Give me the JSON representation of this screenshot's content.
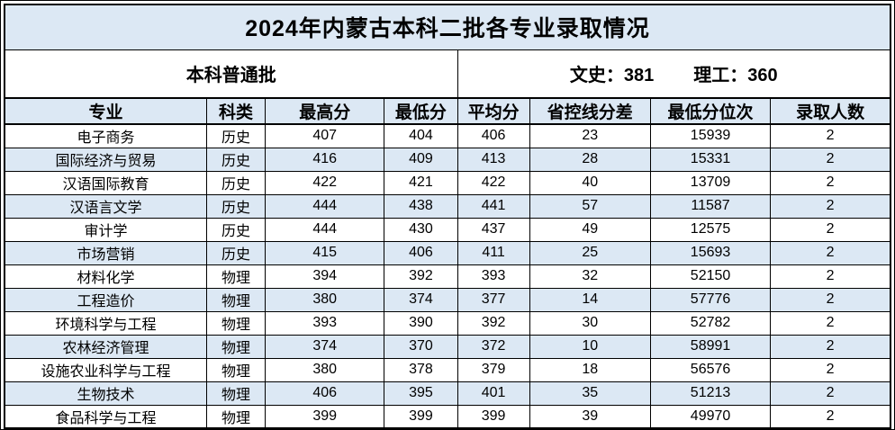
{
  "title": "2024年内蒙古本科二批各专业录取情况",
  "subheader": {
    "batch": "本科普通批",
    "wenshi": "文史：381",
    "ligong": "理工：360"
  },
  "table": {
    "columns": [
      "专业",
      "科类",
      "最高分",
      "最低分",
      "平均分",
      "省控线分差",
      "最低分位次",
      "录取人数"
    ],
    "rows": [
      [
        "电子商务",
        "历史",
        "407",
        "404",
        "406",
        "23",
        "15939",
        "2"
      ],
      [
        "国际经济与贸易",
        "历史",
        "416",
        "409",
        "413",
        "28",
        "15331",
        "2"
      ],
      [
        "汉语国际教育",
        "历史",
        "422",
        "421",
        "422",
        "40",
        "13709",
        "2"
      ],
      [
        "汉语言文学",
        "历史",
        "444",
        "438",
        "441",
        "57",
        "11587",
        "2"
      ],
      [
        "审计学",
        "历史",
        "444",
        "430",
        "437",
        "49",
        "12575",
        "2"
      ],
      [
        "市场营销",
        "历史",
        "415",
        "406",
        "411",
        "25",
        "15693",
        "2"
      ],
      [
        "材料化学",
        "物理",
        "394",
        "392",
        "393",
        "32",
        "52150",
        "2"
      ],
      [
        "工程造价",
        "物理",
        "380",
        "374",
        "377",
        "14",
        "57776",
        "2"
      ],
      [
        "环境科学与工程",
        "物理",
        "393",
        "390",
        "392",
        "30",
        "52782",
        "2"
      ],
      [
        "农林经济管理",
        "物理",
        "374",
        "370",
        "372",
        "10",
        "58991",
        "2"
      ],
      [
        "设施农业科学与工程",
        "物理",
        "380",
        "378",
        "379",
        "18",
        "56576",
        "2"
      ],
      [
        "生物技术",
        "物理",
        "406",
        "395",
        "401",
        "35",
        "51213",
        "2"
      ],
      [
        "食品科学与工程",
        "物理",
        "399",
        "399",
        "399",
        "39",
        "49970",
        "2"
      ]
    ]
  },
  "colors": {
    "header_bg": "#dce8f4",
    "row_alt_bg": "#dce8f4",
    "border": "#000000",
    "text": "#000000"
  }
}
